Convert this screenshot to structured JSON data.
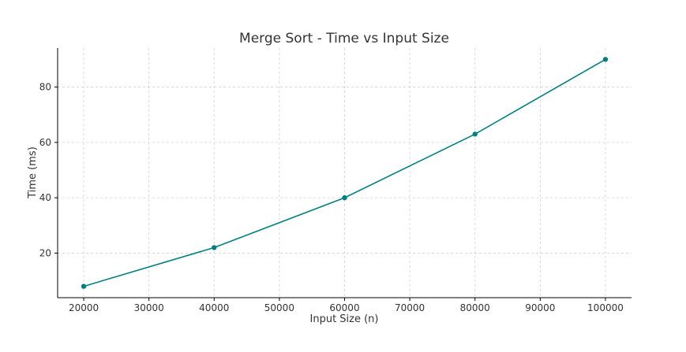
{
  "chart_data": {
    "type": "line",
    "title": "Merge Sort - Time vs Input Size",
    "xlabel": "Input Size (n)",
    "ylabel": "Time (ms)",
    "x": [
      20000,
      40000,
      60000,
      80000,
      100000
    ],
    "series": [
      {
        "values": [
          8,
          22,
          40,
          63,
          90
        ]
      }
    ],
    "xlim": [
      16000,
      104000
    ],
    "ylim": [
      3.9,
      94.1
    ],
    "xticks": [
      20000,
      30000,
      40000,
      50000,
      60000,
      70000,
      80000,
      90000,
      100000
    ],
    "yticks": [
      20,
      40,
      60,
      80
    ],
    "grid": true,
    "line_color": "#008080",
    "marker": "circle"
  }
}
